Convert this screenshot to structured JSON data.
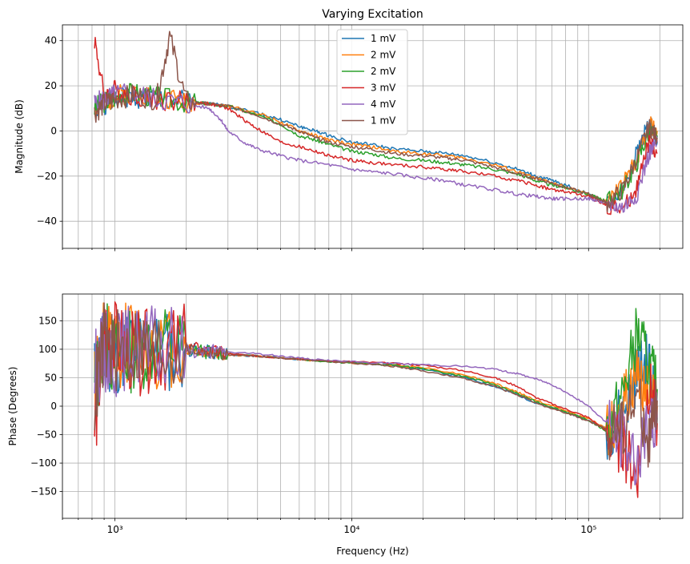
{
  "chart_data": [
    {
      "type": "line",
      "title": "Varying Excitation",
      "ylabel": "Magnitude (dB)",
      "xlabel": "",
      "xscale": "log",
      "xlim": [
        600,
        250000
      ],
      "ylim": [
        -52,
        47
      ],
      "yticks": [
        40,
        20,
        0,
        -20,
        -40
      ],
      "grid": true,
      "legend": "top-center",
      "series": [
        {
          "name": "1 mV",
          "color": "#1f77b4",
          "x": [
            820,
            900,
            1000,
            1200,
            1500,
            2000,
            2500,
            3000,
            4000,
            5000,
            6000,
            7000,
            8000,
            10000,
            12000,
            15000,
            20000,
            25000,
            30000,
            40000,
            50000,
            60000,
            70000,
            80000,
            100000,
            110000,
            120000,
            140000,
            160000,
            180000,
            195000
          ],
          "y": [
            10,
            12,
            14,
            15,
            14,
            13,
            12,
            11,
            8,
            5,
            2,
            0,
            -2,
            -5,
            -6,
            -8,
            -9,
            -10,
            -11,
            -14,
            -17,
            -20,
            -22,
            -24,
            -28,
            -30,
            -32,
            -25,
            -10,
            5,
            -5
          ]
        },
        {
          "name": "2 mV",
          "color": "#ff7f0e",
          "x": [
            820,
            900,
            1000,
            1200,
            1500,
            2000,
            2500,
            3000,
            4000,
            5000,
            6000,
            7000,
            8000,
            10000,
            12000,
            15000,
            20000,
            25000,
            30000,
            40000,
            50000,
            60000,
            70000,
            80000,
            100000,
            110000,
            120000,
            140000,
            160000,
            180000,
            195000
          ],
          "y": [
            10,
            13,
            15,
            18,
            15,
            13,
            12,
            11,
            8,
            4,
            0,
            -2,
            -4,
            -6,
            -7,
            -9,
            -10,
            -11,
            -12,
            -15,
            -18,
            -21,
            -23,
            -25,
            -28,
            -30,
            -31,
            -24,
            -12,
            3,
            0
          ]
        },
        {
          "name": "2 mV",
          "color": "#2ca02c",
          "x": [
            820,
            900,
            1000,
            1200,
            1500,
            2000,
            2500,
            3000,
            4000,
            5000,
            6000,
            7000,
            8000,
            10000,
            12000,
            15000,
            20000,
            25000,
            30000,
            40000,
            50000,
            60000,
            70000,
            80000,
            100000,
            110000,
            120000,
            140000,
            160000,
            180000,
            195000
          ],
          "y": [
            10,
            13,
            15,
            17,
            15,
            13,
            12,
            11,
            7,
            3,
            -2,
            -4,
            -6,
            -9,
            -10,
            -12,
            -13,
            -14,
            -15,
            -17,
            -19,
            -22,
            -24,
            -25,
            -28,
            -30,
            -31,
            -26,
            -14,
            0,
            -2
          ]
        },
        {
          "name": "3 mV",
          "color": "#d62728",
          "x": [
            820,
            900,
            1000,
            1200,
            1500,
            2000,
            2500,
            3000,
            3500,
            4000,
            5000,
            6000,
            7000,
            8000,
            10000,
            12000,
            15000,
            20000,
            25000,
            30000,
            40000,
            50000,
            60000,
            70000,
            80000,
            100000,
            110000,
            120000,
            140000,
            160000,
            180000,
            195000
          ],
          "y": [
            41,
            15,
            18,
            16,
            14,
            13,
            12,
            10,
            5,
            1,
            -5,
            -7,
            -9,
            -11,
            -13,
            -14,
            -15,
            -16,
            -17,
            -18,
            -20,
            -22,
            -24,
            -26,
            -27,
            -29,
            -31,
            -33,
            -35,
            -25,
            -5,
            -10
          ]
        },
        {
          "name": "4 mV",
          "color": "#9467bd",
          "x": [
            820,
            900,
            1000,
            1200,
            1500,
            2000,
            2500,
            2800,
            3000,
            3500,
            4000,
            5000,
            6000,
            8000,
            10000,
            12000,
            15000,
            20000,
            25000,
            30000,
            40000,
            50000,
            60000,
            70000,
            80000,
            100000,
            110000,
            120000,
            140000,
            160000,
            180000,
            195000
          ],
          "y": [
            12,
            14,
            16,
            17,
            14,
            12,
            10,
            5,
            0,
            -5,
            -8,
            -11,
            -13,
            -15,
            -17,
            -18,
            -19,
            -21,
            -22,
            -24,
            -26,
            -28,
            -29,
            -30,
            -30,
            -30,
            -31,
            -32,
            -34,
            -28,
            -10,
            -5
          ]
        },
        {
          "name": "1 mV",
          "color": "#8c564b",
          "x": [
            820,
            900,
            1000,
            1200,
            1500,
            1700,
            2000,
            2500,
            3000,
            4000,
            5000,
            6000,
            7000,
            8000,
            10000,
            12000,
            15000,
            20000,
            25000,
            30000,
            40000,
            50000,
            60000,
            70000,
            80000,
            100000,
            110000,
            120000,
            140000,
            160000,
            180000,
            195000
          ],
          "y": [
            8,
            12,
            14,
            16,
            14,
            42,
            13,
            12,
            11,
            7,
            3,
            0,
            -3,
            -5,
            -7,
            -8,
            -10,
            -11,
            -12,
            -13,
            -16,
            -19,
            -21,
            -23,
            -25,
            -28,
            -30,
            -32,
            -26,
            -12,
            2,
            -3
          ]
        }
      ]
    },
    {
      "type": "line",
      "title": "",
      "ylabel": "Phase (Degrees)",
      "xlabel": "Frequency (Hz)",
      "xscale": "log",
      "xlim": [
        600,
        250000
      ],
      "xtick_labels": [
        "10³",
        "10⁴",
        "10⁵"
      ],
      "ylim": [
        -197,
        197
      ],
      "yticks": [
        150,
        100,
        50,
        0,
        -50,
        -100,
        -150
      ],
      "grid": true,
      "series": [
        {
          "name": "1 mV",
          "color": "#1f77b4",
          "x": [
            820,
            900,
            1000,
            1200,
            1500,
            2000,
            2500,
            3000,
            4000,
            5000,
            7000,
            10000,
            15000,
            20000,
            30000,
            40000,
            50000,
            60000,
            80000,
            100000,
            120000,
            140000,
            160000,
            180000,
            195000
          ],
          "y": [
            50,
            100,
            90,
            110,
            95,
            100,
            95,
            90,
            88,
            85,
            80,
            77,
            72,
            65,
            50,
            35,
            20,
            5,
            -10,
            -25,
            -40,
            -10,
            60,
            80,
            -20
          ]
        },
        {
          "name": "2 mV",
          "color": "#ff7f0e",
          "x": [
            820,
            900,
            1000,
            1200,
            1500,
            2000,
            2500,
            3000,
            4000,
            5000,
            7000,
            10000,
            15000,
            20000,
            30000,
            40000,
            50000,
            60000,
            80000,
            100000,
            120000,
            140000,
            160000,
            180000,
            195000
          ],
          "y": [
            60,
            110,
            100,
            120,
            105,
            100,
            95,
            90,
            88,
            85,
            80,
            76,
            72,
            68,
            55,
            40,
            25,
            10,
            -8,
            -22,
            -40,
            0,
            50,
            40,
            0
          ]
        },
        {
          "name": "2 mV",
          "color": "#2ca02c",
          "x": [
            820,
            900,
            1000,
            1200,
            1500,
            2000,
            2500,
            3000,
            4000,
            5000,
            7000,
            10000,
            15000,
            20000,
            30000,
            40000,
            50000,
            60000,
            80000,
            100000,
            120000,
            140000,
            160000,
            180000,
            195000
          ],
          "y": [
            30,
            120,
            80,
            100,
            110,
            100,
            95,
            92,
            88,
            85,
            80,
            76,
            72,
            66,
            52,
            38,
            22,
            8,
            -10,
            -25,
            -45,
            20,
            130,
            70,
            30
          ]
        },
        {
          "name": "3 mV",
          "color": "#d62728",
          "x": [
            820,
            900,
            1000,
            1200,
            1500,
            2000,
            2500,
            3000,
            4000,
            5000,
            7000,
            10000,
            15000,
            20000,
            30000,
            40000,
            50000,
            60000,
            80000,
            100000,
            120000,
            140000,
            160000,
            180000,
            195000
          ],
          "y": [
            -40,
            130,
            110,
            90,
            100,
            105,
            95,
            92,
            88,
            85,
            81,
            78,
            75,
            72,
            62,
            50,
            35,
            15,
            -5,
            -20,
            -45,
            -70,
            -120,
            40,
            -30
          ]
        },
        {
          "name": "4 mV",
          "color": "#9467bd",
          "x": [
            820,
            900,
            1000,
            1200,
            1500,
            2000,
            2500,
            3000,
            4000,
            5000,
            7000,
            10000,
            15000,
            20000,
            30000,
            40000,
            50000,
            60000,
            70000,
            80000,
            100000,
            120000,
            140000,
            160000,
            180000,
            195000
          ],
          "y": [
            60,
            100,
            90,
            110,
            100,
            98,
            96,
            95,
            92,
            88,
            82,
            78,
            75,
            73,
            70,
            65,
            57,
            48,
            38,
            25,
            0,
            -30,
            -60,
            -90,
            -40,
            -20
          ]
        },
        {
          "name": "1 mV",
          "color": "#8c564b",
          "x": [
            820,
            900,
            1000,
            1200,
            1500,
            2000,
            2500,
            3000,
            4000,
            5000,
            7000,
            10000,
            15000,
            20000,
            30000,
            40000,
            50000,
            60000,
            80000,
            100000,
            120000,
            140000,
            160000,
            180000,
            195000
          ],
          "y": [
            20,
            110,
            95,
            105,
            100,
            100,
            95,
            90,
            88,
            85,
            80,
            76,
            70,
            62,
            48,
            35,
            20,
            5,
            -12,
            -26,
            -42,
            -30,
            20,
            -60,
            10
          ]
        }
      ]
    }
  ]
}
